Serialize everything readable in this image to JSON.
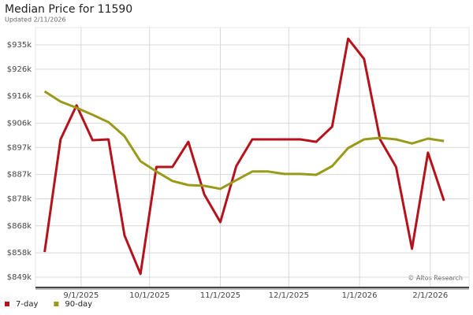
{
  "chart_data": {
    "type": "line",
    "title": "Median Price for 11590",
    "subtitle": "Updated 2/11/2026",
    "annotation": "© Altos Research",
    "x": [
      "8/16/2025",
      "8/23/2025",
      "8/30/2025",
      "9/6/2025",
      "9/13/2025",
      "9/20/2025",
      "9/27/2025",
      "10/4/2025",
      "10/11/2025",
      "10/18/2025",
      "10/25/2025",
      "11/1/2025",
      "11/8/2025",
      "11/15/2025",
      "11/22/2025",
      "11/29/2025",
      "12/6/2025",
      "12/13/2025",
      "12/20/2025",
      "12/27/2025",
      "1/3/2026",
      "1/10/2026",
      "1/17/2026",
      "1/24/2026",
      "1/31/2026",
      "2/7/2026"
    ],
    "series": [
      {
        "name": "7-day",
        "color": "#b5121b",
        "values": [
          858300,
          900000,
          912600,
          899700,
          900000,
          864500,
          850200,
          889800,
          889800,
          899100,
          879600,
          869400,
          890100,
          900000,
          900000,
          900000,
          900000,
          899100,
          904700,
          937300,
          929800,
          900000,
          889800,
          859500,
          895100,
          877300
        ]
      },
      {
        "name": "90-day",
        "color": "#9a9a1a",
        "values": [
          917800,
          914000,
          911700,
          909100,
          906400,
          901200,
          891900,
          888100,
          884600,
          883100,
          882800,
          881700,
          884900,
          888100,
          888100,
          887200,
          887200,
          886900,
          890100,
          896800,
          900000,
          900600,
          900000,
          898500,
          900300,
          899400
        ]
      }
    ],
    "xlim": [
      "8/12/2025",
      "2/18/2026"
    ],
    "xticks": [
      "9/1/2025",
      "10/1/2025",
      "11/1/2025",
      "12/1/2025",
      "1/1/2026",
      "2/1/2026"
    ],
    "ylim": [
      845200,
      941400
    ],
    "yticks": [
      {
        "value": 849000,
        "label": "$849k"
      },
      {
        "value": 858000,
        "label": "$858k"
      },
      {
        "value": 868000,
        "label": "$868k"
      },
      {
        "value": 878000,
        "label": "$878k"
      },
      {
        "value": 887000,
        "label": "$887k"
      },
      {
        "value": 897000,
        "label": "$897k"
      },
      {
        "value": 906000,
        "label": "$906k"
      },
      {
        "value": 916000,
        "label": "$916k"
      },
      {
        "value": 926000,
        "label": "$926k"
      },
      {
        "value": 935000,
        "label": "$935k"
      }
    ],
    "grid": true,
    "legend": "bottom-left"
  }
}
